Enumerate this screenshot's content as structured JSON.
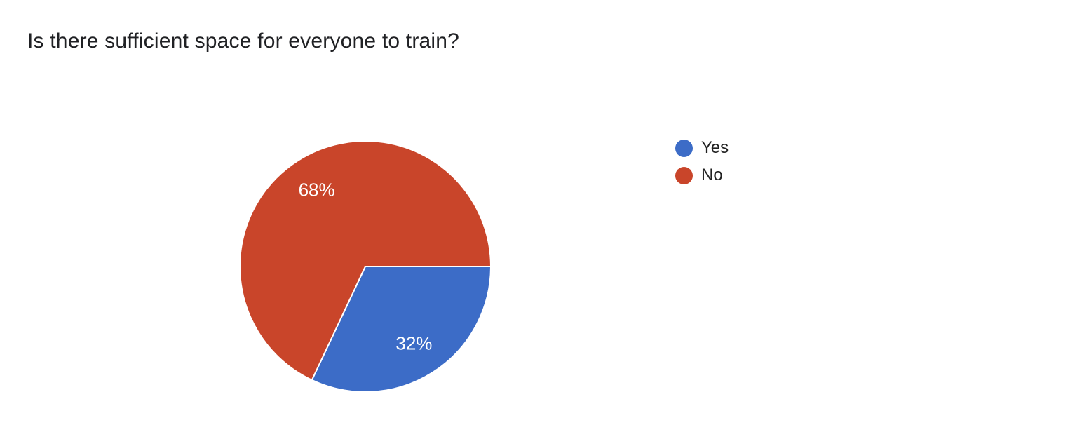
{
  "page": {
    "background": "#ffffff"
  },
  "question": {
    "title": "Is there sufficient space for everyone to train?",
    "title_color": "#202124"
  },
  "chart_data": {
    "type": "pie",
    "title": "Is there sufficient space for everyone to train?",
    "categories": [
      "Yes",
      "No"
    ],
    "values": [
      32,
      68
    ],
    "series": [
      {
        "name": "Yes",
        "value": 32,
        "percent_label": "32%",
        "color": "#3c6cc7"
      },
      {
        "name": "No",
        "value": 68,
        "percent_label": "68%",
        "color": "#c9452a"
      }
    ],
    "start_angle_deg": 0,
    "direction": "clockwise",
    "legend_position": "right",
    "slice_label_color": "#ffffff",
    "slice_border_color": "#ffffff"
  }
}
